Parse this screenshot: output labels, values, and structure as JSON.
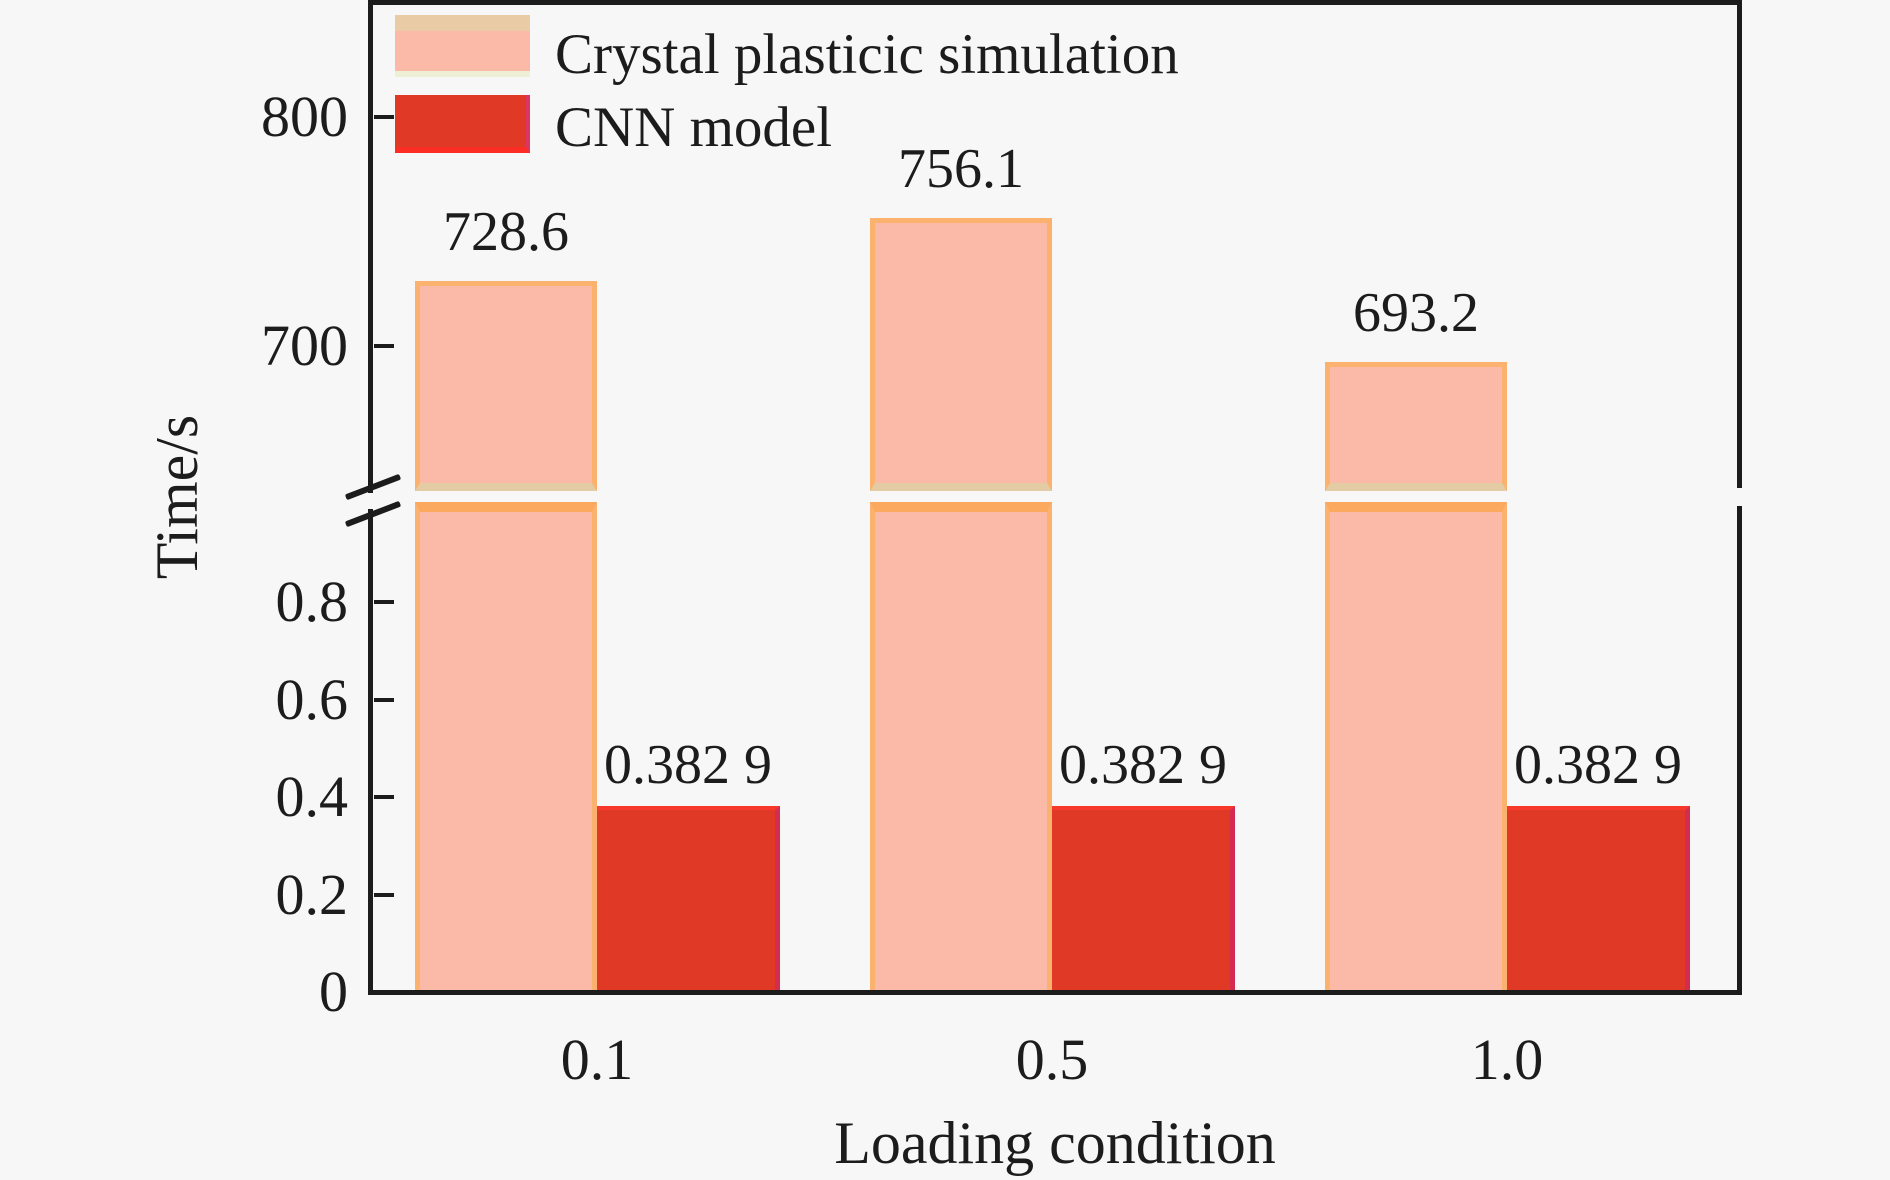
{
  "page": {
    "background": "#f7f7f7",
    "text_color": "#1c1c1c"
  },
  "chart_data": {
    "type": "bar",
    "title": "",
    "xlabel": "Loading condition",
    "ylabel": "Time/s",
    "categories": [
      "0.1",
      "0.5",
      "1.0"
    ],
    "series": [
      {
        "name": "Crystal plasticic simulation",
        "values": [
          728.6,
          756.1,
          693.2
        ],
        "value_labels": [
          "728.6",
          "756.1",
          "693.2"
        ]
      },
      {
        "name": "CNN model",
        "values": [
          0.3829,
          0.3829,
          0.3829
        ],
        "value_labels": [
          "0.382 9",
          "0.382 9",
          "0.382 9"
        ]
      }
    ],
    "y_axis": {
      "has_break": true,
      "lower_range": [
        0,
        0.9
      ],
      "upper_range": [
        663,
        820
      ],
      "lower_ticks": [
        {
          "v": 0,
          "label": "0"
        },
        {
          "v": 0.2,
          "label": "0.2"
        },
        {
          "v": 0.4,
          "label": "0.4"
        },
        {
          "v": 0.6,
          "label": "0.6"
        },
        {
          "v": 0.8,
          "label": "0.8"
        }
      ],
      "upper_ticks": [
        {
          "v": 700,
          "label": "700"
        },
        {
          "v": 800,
          "label": "800"
        }
      ]
    },
    "legend": {
      "position": "top-left",
      "entries": [
        "Crystal plasticic simulation",
        "CNN model"
      ]
    },
    "grid": false
  },
  "colors": {
    "axis": "#1c1c1c",
    "background": "#f7f7f7",
    "sim_fill": "#fbbaa8",
    "sim_edge": "#fbb26e",
    "sim_edge_bottom_tan": "#e3cba3",
    "sim_break_edge": "#fba95f",
    "cnn_fill": "#e03a26",
    "cnn_edge_top": "#f7392b",
    "cnn_edge_right": "#d42c50",
    "legend_sim_top": "#e9cba6",
    "legend_sim_fill": "#fbb9a8",
    "legend_sim_bottom": "#eef0d6",
    "legend_cnn_fill": "#e03a26",
    "legend_cnn_bottom": "#fb2d24",
    "legend_cnn_right": "#dd3563"
  }
}
